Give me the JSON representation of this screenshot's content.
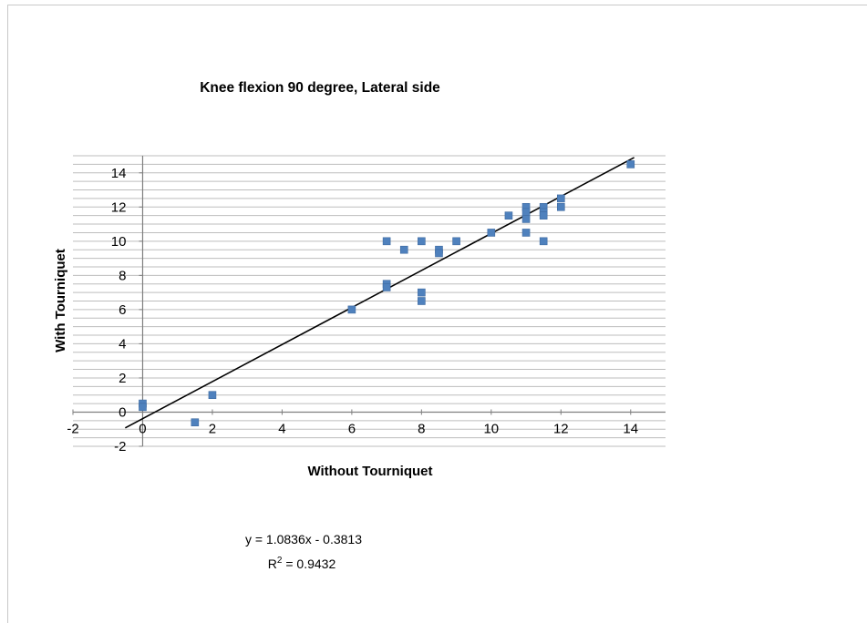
{
  "chart_data": {
    "type": "scatter",
    "title": "Knee flexion 90 degree, Lateral side",
    "xlabel": "Without Tourniquet",
    "ylabel": "With Tourniquet",
    "xlim": [
      -2,
      15
    ],
    "ylim": [
      -2,
      15
    ],
    "x_ticks": [
      "-2",
      "0",
      "2",
      "4",
      "6",
      "8",
      "10",
      "12",
      "14"
    ],
    "y_ticks": [
      "-2",
      "0",
      "2",
      "4",
      "6",
      "8",
      "10",
      "12",
      "14"
    ],
    "grid": true,
    "legend": "none",
    "marker_color": "#4f81bd",
    "trendline_color": "#000000",
    "series": [
      {
        "points": [
          [
            0,
            0.5
          ],
          [
            0,
            0.3
          ],
          [
            1.5,
            -0.6
          ],
          [
            2,
            1.0
          ],
          [
            6,
            6.0
          ],
          [
            7,
            7.5
          ],
          [
            7,
            7.3
          ],
          [
            7,
            10.0
          ],
          [
            7.5,
            9.5
          ],
          [
            8,
            10.0
          ],
          [
            8,
            7.0
          ],
          [
            8,
            6.5
          ],
          [
            8.5,
            9.5
          ],
          [
            8.5,
            9.3
          ],
          [
            9,
            10.0
          ],
          [
            10,
            10.5
          ],
          [
            10.5,
            11.5
          ],
          [
            11,
            12.0
          ],
          [
            11,
            11.7
          ],
          [
            11,
            11.3
          ],
          [
            11,
            10.5
          ],
          [
            11.5,
            12.0
          ],
          [
            11.5,
            11.7
          ],
          [
            11.5,
            11.5
          ],
          [
            11.5,
            10.0
          ],
          [
            12,
            12.5
          ],
          [
            12,
            12.0
          ],
          [
            14,
            14.5
          ]
        ]
      }
    ],
    "trendline": {
      "slope": 1.0836,
      "intercept": -0.3813,
      "x_range": [
        -0.5,
        14.1
      ]
    },
    "annotations": {
      "equation": "y = 1.0836x - 0.3813",
      "r_squared_prefix": "R",
      "r_squared_sup": "2",
      "r_squared_value": " = 0.9432"
    }
  }
}
